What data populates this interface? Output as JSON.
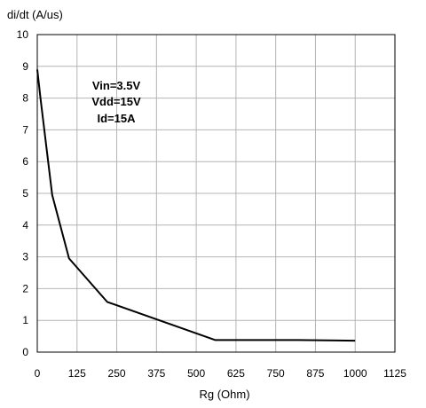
{
  "chart_data": {
    "type": "line",
    "ylabel": "di/dt (A/us)",
    "xlabel": "Rg (Ohm)",
    "xlim": [
      0,
      1125
    ],
    "ylim": [
      0,
      10
    ],
    "x_ticks": [
      "0",
      "125",
      "250",
      "375",
      "500",
      "625",
      "750",
      "875",
      "1000",
      "1125"
    ],
    "y_ticks": [
      "0",
      "1",
      "2",
      "3",
      "4",
      "5",
      "6",
      "7",
      "8",
      "9",
      "10"
    ],
    "grid": true,
    "annotations": [
      "Vin=3.5V",
      "Vdd=15V",
      "Id=15A"
    ],
    "series": [
      {
        "x": [
          0,
          10,
          47,
          100,
          220,
          560,
          820,
          1000
        ],
        "y": [
          8.9,
          8.0,
          4.95,
          2.95,
          1.58,
          0.38,
          0.38,
          0.36
        ]
      }
    ]
  }
}
